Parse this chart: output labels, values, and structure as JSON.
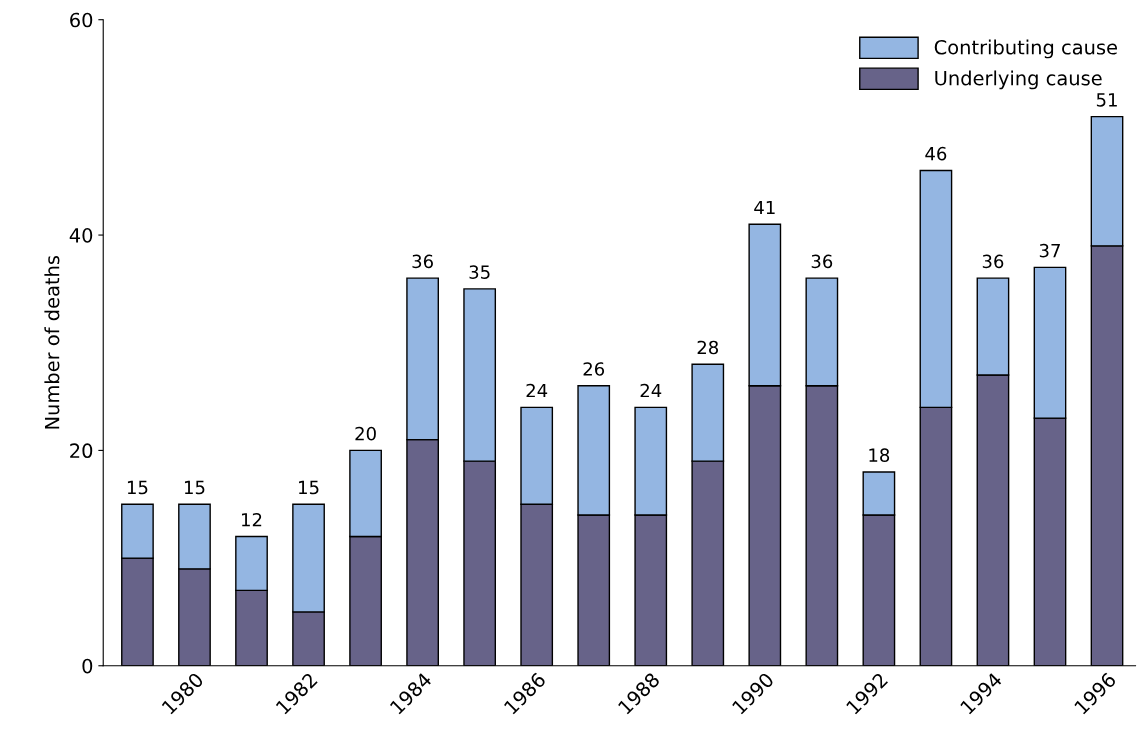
{
  "chart_data": {
    "type": "bar",
    "stacked": true,
    "ylabel": "Number of deaths",
    "categories": [
      null,
      "1980",
      null,
      "1982",
      null,
      "1984",
      null,
      "1986",
      null,
      "1988",
      null,
      "1990",
      null,
      "1992",
      null,
      "1994",
      null,
      "1996"
    ],
    "series": [
      {
        "name": "Underlying cause",
        "color": "#676389",
        "values": [
          10,
          9,
          7,
          5,
          12,
          21,
          19,
          15,
          14,
          14,
          19,
          26,
          26,
          14,
          24,
          27,
          23,
          39
        ]
      },
      {
        "name": "Contributing cause",
        "color": "#94b6e2",
        "values": [
          5,
          6,
          5,
          10,
          8,
          15,
          16,
          9,
          12,
          10,
          9,
          15,
          10,
          4,
          22,
          9,
          14,
          12
        ]
      }
    ],
    "totals": [
      "15",
      "15",
      "12",
      "15",
      "20",
      "36",
      "35",
      "24",
      "26",
      "24",
      "28",
      "41",
      "36",
      "18",
      "46",
      "36",
      "37",
      "51"
    ],
    "ylim": [
      0,
      60
    ],
    "yticks": [
      0,
      20,
      40,
      60
    ],
    "grid": false,
    "legend": "top right"
  }
}
